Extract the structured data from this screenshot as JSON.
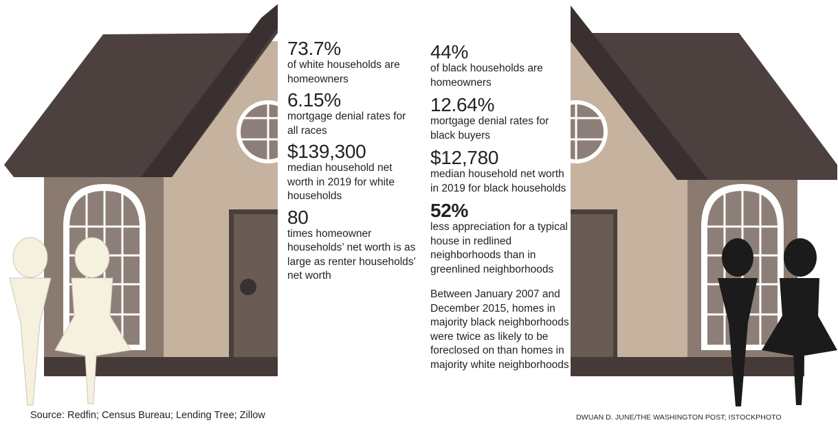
{
  "stats_left": [
    {
      "value": "73.7%",
      "desc": "of white households are homeowners"
    },
    {
      "value": "6.15%",
      "desc": "mortgage denial rates for all races"
    },
    {
      "value": "$139,300",
      "desc": "median household net worth in 2019 for white households"
    },
    {
      "value": "80",
      "desc": "times homeowner households’ net worth is as large as renter households’ net worth"
    }
  ],
  "stats_right": [
    {
      "value": "44%",
      "desc": "of black households are homeowners"
    },
    {
      "value": "12.64%",
      "desc": "mortgage denial rates for black buyers"
    },
    {
      "value": "$12,780",
      "desc": "median household net worth in 2019 for black households"
    },
    {
      "value": "52%",
      "desc": "less appreciation for a typical house in redlined neighborhoods than in greenlined neighborhoods"
    }
  ],
  "foreclosure_note": "Between January 2007 and December 2015, homes in majority black neighborhoods were twice as likely to be foreclosed on than homes in majority white neighborhoods",
  "source": "Source: Redfin; Census Bureau; Lending Tree; Zillow",
  "credit": "DWUAN D. JUNE/THE WASHINGTON POST; ISTOCKPHOTO",
  "colors": {
    "roof": "#4d4140",
    "wall_light": "#c6b39f",
    "wall_dark": "#8a7a70",
    "foundation": "#463a38",
    "door": "#6a5b55",
    "window_frame": "#ffffff",
    "window_pane": "#8d7f77",
    "white_figures": "#f6f1df",
    "black_figures": "#1b1b1b"
  }
}
